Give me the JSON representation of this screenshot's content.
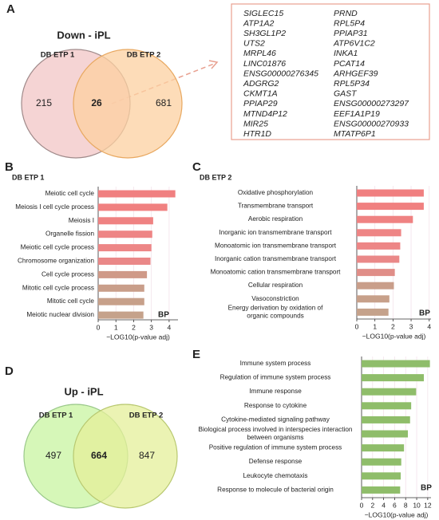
{
  "panels": [
    "A",
    "B",
    "C",
    "D",
    "E"
  ],
  "gene_list": {
    "columns": [
      [
        "SIGLEC15",
        "ATP1A2",
        "SH3GL1P2",
        "UTS2",
        "MRPL46",
        "LINC01876",
        "ENSG00000276345",
        "ADGRG2",
        "CKMT1A",
        "PPIAP29",
        "MTND4P12",
        "MIR25",
        "HTR1D"
      ],
      [
        "PRND",
        "RPL5P4",
        "PPIAP31",
        "ATP6V1C2",
        "INKA1",
        "PCAT14",
        "ARHGEF39",
        "RPL5P34",
        "GAST",
        "ENSG00000273297",
        "EEF1A1P19",
        "ENSG00000270933",
        "MTATP6P1"
      ]
    ]
  },
  "chart_data": [
    {
      "type": "venn",
      "title": "Down - iPL",
      "title_color": "#a3201f",
      "sets": [
        "DB ETP 1",
        "DB ETP 2"
      ],
      "values": [
        215,
        26,
        681
      ],
      "colors": [
        "#f2c6c6",
        "#fcd0a0"
      ],
      "edge_colors": [
        "#a08a8a",
        "#e8a860"
      ]
    },
    {
      "type": "barh",
      "title": "DB ETP 1",
      "annotation": "BP",
      "xlabel": "−LOG10(p-value adj)",
      "categories": [
        [
          "Meiotic cell cycle"
        ],
        [
          "Meiosis I cell cycle process"
        ],
        [
          "Meiosis I"
        ],
        [
          "Organelle fission"
        ],
        [
          "Meiotic cell cycle process"
        ],
        [
          "Chromosome organization"
        ],
        [
          "Cell cycle process"
        ],
        [
          "Mitotic cell cycle process"
        ],
        [
          "Mitotic cell cycle"
        ],
        [
          "Meiotic nuclear division"
        ]
      ],
      "values": [
        4.35,
        3.9,
        3.1,
        3.05,
        3.0,
        2.95,
        2.75,
        2.6,
        2.6,
        2.55
      ],
      "colors": [
        "#f07f80",
        "#f08080",
        "#ef8282",
        "#ee8585",
        "#ed8686",
        "#ea8888",
        "#cf9a88",
        "#c99e8a",
        "#c7a08a",
        "#c5a28b"
      ],
      "xlim": [
        0,
        4.5
      ],
      "xticks": [
        0,
        1,
        2,
        3,
        4
      ],
      "grid": true
    },
    {
      "type": "barh",
      "title": "DB ETP 2",
      "annotation": "BP",
      "xlabel": "−LOG10(p-value adj)",
      "categories": [
        [
          "Oxidative phosphorylation"
        ],
        [
          "Transmembrane transport"
        ],
        [
          "Aerobic respiration"
        ],
        [
          "Inorganic ion transmembrane transport"
        ],
        [
          "Monoatomic ion transmembrane transport"
        ],
        [
          "Inorganic cation transmembrane transport"
        ],
        [
          "Monoatomic cation transmembrane transport"
        ],
        [
          "Cellular respiration"
        ],
        [
          "Vasoconstriction"
        ],
        [
          "Energy derivation by oxidation of",
          "organic compounds"
        ]
      ],
      "values": [
        3.7,
        3.7,
        3.1,
        2.45,
        2.4,
        2.35,
        2.1,
        2.05,
        1.8,
        1.75
      ],
      "colors": [
        "#f07f80",
        "#f08080",
        "#ef8282",
        "#ee8585",
        "#ed8686",
        "#ea8888",
        "#e08e88",
        "#c99e8a",
        "#c7a08a",
        "#c5a28b"
      ],
      "xlim": [
        0,
        4.1
      ],
      "xticks": [
        0,
        1,
        2,
        3,
        4
      ],
      "grid": true
    },
    {
      "type": "venn",
      "title": "Up - iPL",
      "title_color": "#3b7d1c",
      "sets": [
        "DB ETP 1",
        "DB ETP 2"
      ],
      "values": [
        497,
        664,
        847
      ],
      "colors": [
        "#c8f4a0",
        "#e4ef9a"
      ],
      "edge_colors": [
        "#9ac88a",
        "#b8c870"
      ]
    },
    {
      "type": "barh",
      "annotation": "BP",
      "xlabel": "−LOG10(p-value adj)",
      "categories": [
        [
          "Immune system process"
        ],
        [
          "Regulation of immune system process"
        ],
        [
          "Immune response"
        ],
        [
          "Response to cytokine"
        ],
        [
          "Cytokine-mediated signaling pathway"
        ],
        [
          "Biological process involved in interspecies interaction",
          "between organisms"
        ],
        [
          "Positive regulation of immune system process"
        ],
        [
          "Defense response"
        ],
        [
          "Leukocyte chemotaxis"
        ],
        [
          "Response to molecule of bacterial origin"
        ]
      ],
      "values": [
        12.4,
        11.3,
        9.9,
        9.0,
        8.8,
        8.4,
        7.7,
        7.2,
        7.1,
        7.0
      ],
      "colors": [
        "#8fbd6a",
        "#8fbd6a",
        "#8fbd6a",
        "#8fbd6a",
        "#8fbd6a",
        "#8fbd6a",
        "#8fbd6a",
        "#8fbd6a",
        "#8fbd6a",
        "#8fbd6a"
      ],
      "xlim": [
        0,
        12.6
      ],
      "xticks": [
        0,
        2,
        4,
        6,
        8,
        10,
        12
      ],
      "grid": true
    }
  ]
}
